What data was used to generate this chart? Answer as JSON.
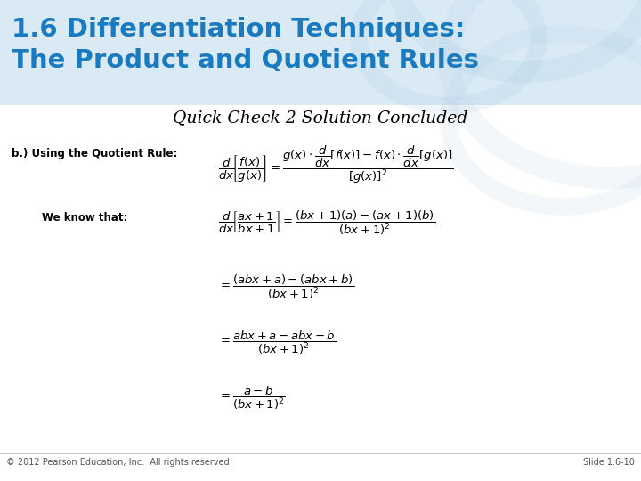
{
  "header_line1": "1.6 Differentiation Techniques:",
  "header_line2": "The Product and Quotient Rules",
  "header_bg_color": "#daeaf5",
  "header_text_color": "#1a7abf",
  "title": "Quick Check 2 Solution Concluded",
  "title_color": "#000000",
  "bg_color": "#ffffff",
  "footer_left": "© 2012 Pearson Education, Inc.  All rights reserved",
  "footer_right": "Slide 1.6-10",
  "footer_color": "#555555",
  "label_b": "b.) Using the Quotient Rule:",
  "label_we": "We know that:"
}
